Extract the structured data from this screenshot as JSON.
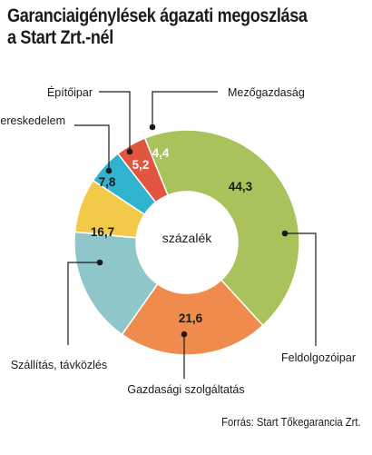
{
  "title_lines": [
    "Garanciaigénylések ágazati megoszlása",
    "a Start Zrt.-nél"
  ],
  "source": "Forrás: Start Tőkegarancia Zrt.",
  "chart_data": {
    "type": "pie",
    "center_label": "százalék",
    "slices": [
      {
        "label": "Feldolgozóipar",
        "value": 44.3,
        "display": "44,3",
        "color": "#a9c25b",
        "value_color": "#1a1a1a"
      },
      {
        "label": "Gazdasági szolgáltatás",
        "value": 21.6,
        "display": "21,6",
        "color": "#ef8b4c",
        "value_color": "#1a1a1a"
      },
      {
        "label": "Szállítás, távközlés",
        "value": 16.7,
        "display": "16,7",
        "color": "#8ec6c9",
        "value_color": "#1a1a1a"
      },
      {
        "label": "Kereskedelem",
        "value": 7.8,
        "display": "7,8",
        "color": "#f3c94a",
        "value_color": "#1a1a1a"
      },
      {
        "label": "Építőipar",
        "value": 5.2,
        "display": "5,2",
        "color": "#2fb3cf",
        "value_color": "#ffffff"
      },
      {
        "label": "Mezőgazdaság",
        "value": 4.4,
        "display": "4,4",
        "color": "#e2553f",
        "value_color": "#ffffff"
      }
    ]
  }
}
